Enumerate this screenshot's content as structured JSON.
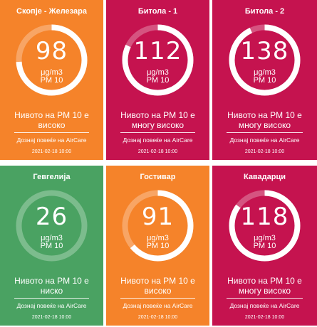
{
  "colors": {
    "orange": "#f5832a",
    "crimson": "#c5134f",
    "green": "#4aa262"
  },
  "stations": [
    {
      "name": "Скопје - Железара",
      "value": "98",
      "unit": "μg/m3",
      "pollutant": "PM 10",
      "level_line1": "Нивото на PM 10 е",
      "level_line2": "високо",
      "link": "Дознај повеќе на AirCare",
      "date": "2021-02-18 10:00",
      "color": "#f5832a",
      "gauge_fill": 0.74
    },
    {
      "name": "Битола - 1",
      "value": "112",
      "unit": "μg/m3",
      "pollutant": "PM 10",
      "level_line1": "Нивото на PM 10 е",
      "level_line2": "многу високо",
      "link": "Дознај повеќе на AirCare",
      "date": "2021-02-18 10:00",
      "color": "#c5134f",
      "gauge_fill": 0.82
    },
    {
      "name": "Битола - 2",
      "value": "138",
      "unit": "μg/m3",
      "pollutant": "PM 10",
      "level_line1": "Нивото на PM 10 е",
      "level_line2": "многу високо",
      "link": "Дознај повеќе на AirCare",
      "date": "2021-02-18 10:00",
      "color": "#c5134f",
      "gauge_fill": 0.93
    },
    {
      "name": "Гевгелија",
      "value": "26",
      "unit": "μg/m3",
      "pollutant": "PM 10",
      "level_line1": "Нивото на PM 10 е",
      "level_line2": "ниско",
      "link": "Дознај повеќе на AirCare",
      "date": "2021-02-18 10:00",
      "color": "#4aa262",
      "gauge_fill": 0.0
    },
    {
      "name": "Гостивар",
      "value": "91",
      "unit": "μg/m3",
      "pollutant": "PM 10",
      "level_line1": "Нивото на PM 10 е",
      "level_line2": "високо",
      "link": "Дознај повеќе на AirCare",
      "date": "2021-02-18 10:00",
      "color": "#f5832a",
      "gauge_fill": 0.64
    },
    {
      "name": "Кавадарци",
      "value": "118",
      "unit": "μg/m3",
      "pollutant": "PM 10",
      "level_line1": "Нивото на PM 10 е",
      "level_line2": "многу високо",
      "link": "Дознај повеќе на AirCare",
      "date": "2021-02-18 10:00",
      "color": "#c5134f",
      "gauge_fill": 0.85
    }
  ]
}
